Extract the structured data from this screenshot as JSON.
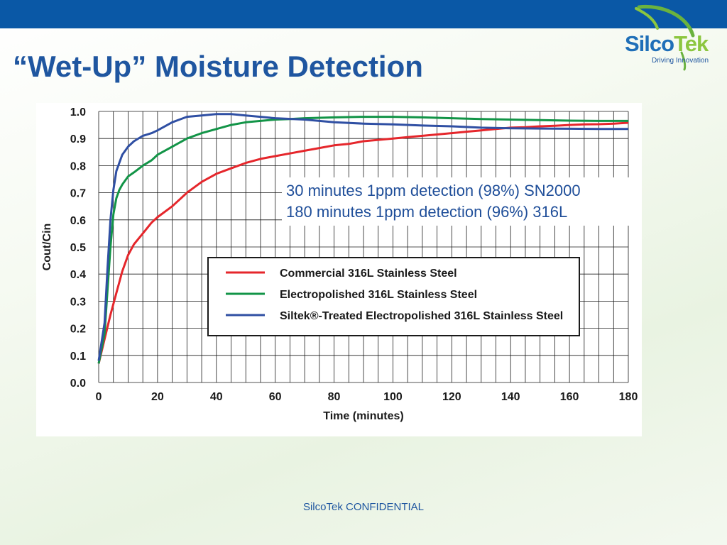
{
  "slide": {
    "title": "“Wet-Up” Moisture Detection",
    "footer": "SilcoTek CONFIDENTIAL"
  },
  "logo": {
    "name_main": "Silco",
    "name_accent": "Tek",
    "tagline": "Driving Innovation",
    "colors": {
      "main": "#1f6fb8",
      "accent": "#8cc63f",
      "swoosh": "#6ab23e"
    }
  },
  "callout": {
    "lines": [
      "30 minutes 1ppm detection (98%) SN2000",
      "180 minutes 1ppm detection (96%) 316L"
    ]
  },
  "colors": {
    "top_bar": "#0a58a6",
    "title": "#1f56a0",
    "callout_text": "#1f4e99"
  },
  "chart_data": {
    "type": "line",
    "xlabel": "Time (minutes)",
    "ylabel": "Cout/Cin",
    "xlim": [
      0,
      180
    ],
    "ylim": [
      0,
      1.0
    ],
    "x_ticks": [
      0,
      20,
      40,
      60,
      80,
      100,
      120,
      140,
      160,
      180
    ],
    "y_ticks": [
      "0.0",
      "0.1",
      "0.2",
      "0.3",
      "0.4",
      "0.5",
      "0.6",
      "0.7",
      "0.8",
      "0.9",
      "1.0"
    ],
    "grid": true,
    "legend_position": "center-right, inside plot",
    "series": [
      {
        "name": "Commercial 316L Stainless Steel",
        "color": "#e5262b",
        "points": [
          [
            0,
            0.07
          ],
          [
            2,
            0.16
          ],
          [
            4,
            0.25
          ],
          [
            6,
            0.33
          ],
          [
            8,
            0.41
          ],
          [
            10,
            0.47
          ],
          [
            12,
            0.51
          ],
          [
            15,
            0.55
          ],
          [
            18,
            0.59
          ],
          [
            20,
            0.61
          ],
          [
            25,
            0.65
          ],
          [
            30,
            0.7
          ],
          [
            35,
            0.74
          ],
          [
            40,
            0.77
          ],
          [
            45,
            0.79
          ],
          [
            50,
            0.81
          ],
          [
            55,
            0.825
          ],
          [
            60,
            0.835
          ],
          [
            65,
            0.845
          ],
          [
            70,
            0.855
          ],
          [
            75,
            0.865
          ],
          [
            80,
            0.875
          ],
          [
            85,
            0.88
          ],
          [
            90,
            0.89
          ],
          [
            95,
            0.895
          ],
          [
            100,
            0.9
          ],
          [
            105,
            0.905
          ],
          [
            110,
            0.91
          ],
          [
            115,
            0.915
          ],
          [
            120,
            0.92
          ],
          [
            125,
            0.925
          ],
          [
            130,
            0.93
          ],
          [
            135,
            0.935
          ],
          [
            140,
            0.94
          ],
          [
            145,
            0.942
          ],
          [
            150,
            0.945
          ],
          [
            155,
            0.947
          ],
          [
            160,
            0.95
          ],
          [
            165,
            0.952
          ],
          [
            170,
            0.953
          ],
          [
            175,
            0.955
          ],
          [
            180,
            0.958
          ]
        ]
      },
      {
        "name": "Electropolished 316L Stainless Steel",
        "color": "#129447",
        "points": [
          [
            0,
            0.07
          ],
          [
            2,
            0.18
          ],
          [
            3,
            0.34
          ],
          [
            4,
            0.5
          ],
          [
            5,
            0.62
          ],
          [
            6,
            0.68
          ],
          [
            7,
            0.71
          ],
          [
            8,
            0.73
          ],
          [
            10,
            0.76
          ],
          [
            12,
            0.775
          ],
          [
            15,
            0.8
          ],
          [
            18,
            0.82
          ],
          [
            20,
            0.84
          ],
          [
            25,
            0.87
          ],
          [
            30,
            0.9
          ],
          [
            35,
            0.92
          ],
          [
            40,
            0.935
          ],
          [
            45,
            0.95
          ],
          [
            50,
            0.96
          ],
          [
            55,
            0.965
          ],
          [
            60,
            0.97
          ],
          [
            65,
            0.972
          ],
          [
            70,
            0.975
          ],
          [
            80,
            0.978
          ],
          [
            90,
            0.98
          ],
          [
            100,
            0.98
          ],
          [
            110,
            0.978
          ],
          [
            120,
            0.975
          ],
          [
            130,
            0.972
          ],
          [
            140,
            0.97
          ],
          [
            150,
            0.968
          ],
          [
            160,
            0.966
          ],
          [
            170,
            0.965
          ],
          [
            180,
            0.965
          ]
        ]
      },
      {
        "name": "Siltek®-Treated Electropolished 316L Stainless Steel",
        "color": "#2f4fa3",
        "points": [
          [
            0,
            0.08
          ],
          [
            2,
            0.22
          ],
          [
            3,
            0.42
          ],
          [
            4,
            0.6
          ],
          [
            5,
            0.71
          ],
          [
            6,
            0.78
          ],
          [
            7,
            0.81
          ],
          [
            8,
            0.84
          ],
          [
            10,
            0.87
          ],
          [
            12,
            0.89
          ],
          [
            15,
            0.91
          ],
          [
            18,
            0.92
          ],
          [
            20,
            0.93
          ],
          [
            25,
            0.96
          ],
          [
            30,
            0.98
          ],
          [
            35,
            0.985
          ],
          [
            40,
            0.99
          ],
          [
            45,
            0.99
          ],
          [
            50,
            0.985
          ],
          [
            55,
            0.98
          ],
          [
            60,
            0.975
          ],
          [
            70,
            0.97
          ],
          [
            80,
            0.96
          ],
          [
            90,
            0.955
          ],
          [
            100,
            0.952
          ],
          [
            110,
            0.948
          ],
          [
            120,
            0.945
          ],
          [
            130,
            0.94
          ],
          [
            140,
            0.938
          ],
          [
            150,
            0.937
          ],
          [
            160,
            0.936
          ],
          [
            170,
            0.935
          ],
          [
            180,
            0.935
          ]
        ]
      }
    ]
  }
}
